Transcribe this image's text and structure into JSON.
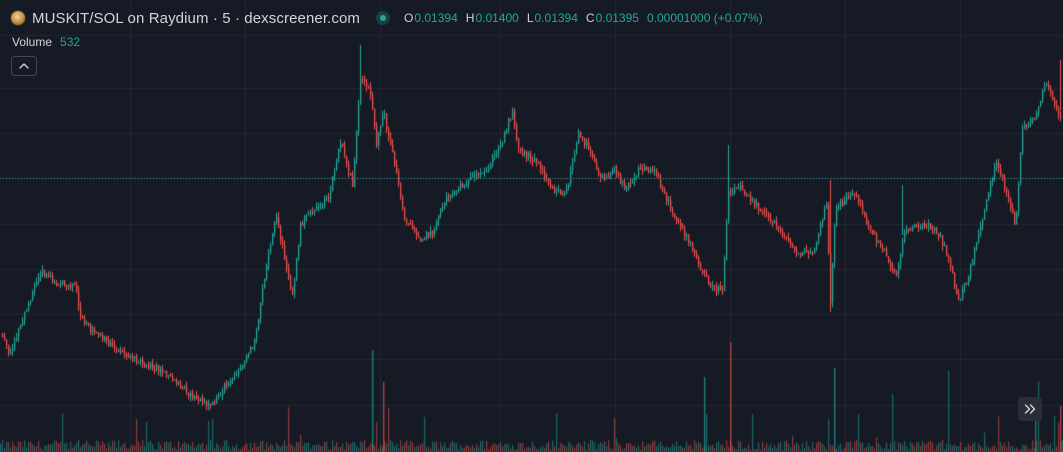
{
  "header": {
    "title": "MUSKIT/SOL on Raydium · 5 · dexscreener.com",
    "logo_icon": "token-logo-icon",
    "status": "market-open",
    "ohlc": {
      "o_label": "O",
      "o_value": "0.01394",
      "h_label": "H",
      "h_value": "0.01400",
      "l_label": "L",
      "l_value": "0.01394",
      "c_label": "C",
      "c_value": "0.01395",
      "change": "0.00001000 (+0.07%)"
    }
  },
  "volume": {
    "label": "Volume",
    "value": "532"
  },
  "controls": {
    "collapse_icon": "chevron-up-icon",
    "scroll_icon": "double-chevron-right-icon"
  },
  "colors": {
    "background": "#161a25",
    "grid": "#232732",
    "up": "#26a69a",
    "down": "#ef5350",
    "text": "#d1d4dc",
    "last_price_line": "#26a69a"
  },
  "chart_data": {
    "type": "candlestick",
    "symbol": "MUSKIT/SOL",
    "interval": "5",
    "last_close": 0.01395,
    "grid": true,
    "last_price_line": "dotted",
    "volume_overlay": "bottom"
  }
}
